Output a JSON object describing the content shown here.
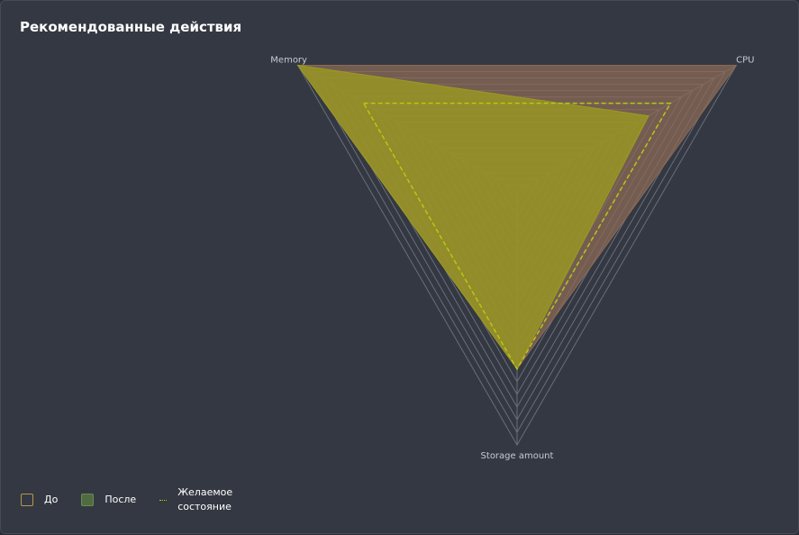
{
  "chart_data": {
    "type": "radar",
    "title": "Рекомендованные действия",
    "categories": [
      "Memory",
      "CPU",
      "Storage amount"
    ],
    "rlim": [
      0,
      100
    ],
    "rticks": [
      5,
      10,
      15,
      20,
      25,
      30,
      35,
      40,
      45,
      50,
      55,
      60,
      65,
      70,
      75,
      80,
      85,
      90,
      95,
      100
    ],
    "grid": true,
    "series": [
      {
        "name": "До",
        "color": "#8a6a55",
        "values": [
          100,
          100,
          70
        ]
      },
      {
        "name": "После",
        "color": "#9c9c1e",
        "values": [
          100,
          60,
          70
        ]
      },
      {
        "name": "Желаемое состояние",
        "color": "#b8c814",
        "dashed": true,
        "values": [
          70,
          70,
          70
        ]
      }
    ]
  }
}
